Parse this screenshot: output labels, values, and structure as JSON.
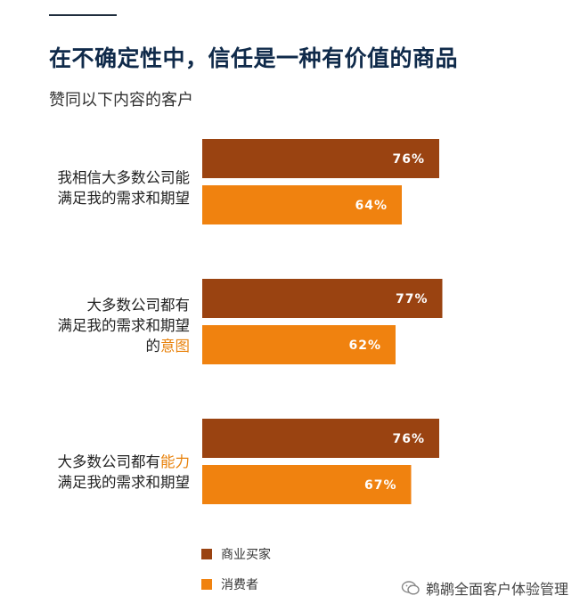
{
  "title": "在不确定性中，信任是一种有价值的商品",
  "subtitle": "赞同以下内容的客户",
  "watermark": "鹈鹕全面客户体验管理",
  "colors": {
    "business": "#9a4311",
    "consumer": "#f0820f",
    "highlight": "#e8820c"
  },
  "chart_data": {
    "type": "bar",
    "orientation": "horizontal",
    "categories": [
      "我相信大多数公司能满足我的需求和期望",
      "大多数公司都有满足我的需求和期望的意图",
      "大多数公司都有能力满足我的需求和期望"
    ],
    "category_lines": [
      [
        [
          "我相信大多数公司能"
        ],
        [
          "满足我的需求和期望"
        ]
      ],
      [
        [
          "大多数公司都有"
        ],
        [
          "满足我的需求和期望"
        ],
        [
          "的",
          "意图"
        ]
      ],
      [
        [
          "大多数公司都有",
          "能力"
        ],
        [
          "满足我的需求和期望"
        ]
      ]
    ],
    "series": [
      {
        "name": "商业买家",
        "values": [
          76,
          77,
          76
        ],
        "labels": [
          "76%",
          "77%",
          "76%"
        ]
      },
      {
        "name": "消费者",
        "values": [
          64,
          62,
          67
        ],
        "labels": [
          "64%",
          "62%",
          "67%"
        ]
      }
    ],
    "value_unit": "%",
    "xlim": [
      0,
      100
    ],
    "grid": false,
    "legend_position": "bottom-left"
  }
}
